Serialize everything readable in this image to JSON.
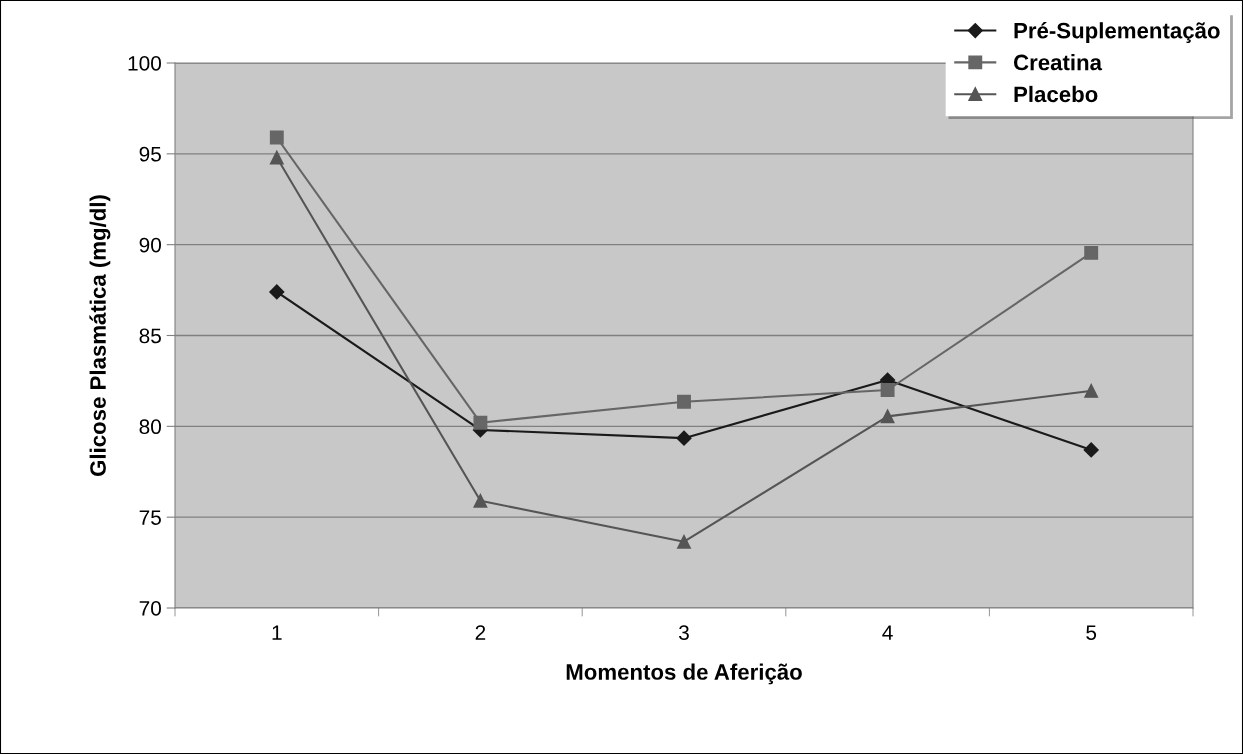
{
  "chart_data": {
    "type": "line",
    "xlabel": "Momentos de Aferição",
    "ylabel": "Glicose Plasmática (mg/dl)",
    "categories": [
      "1",
      "2",
      "3",
      "4",
      "5"
    ],
    "series": [
      {
        "name": "Pré-Suplementação",
        "color": "#1a1a1a",
        "marker": "diamond",
        "values": [
          87.4,
          79.8,
          79.35,
          82.55,
          78.7
        ]
      },
      {
        "name": "Creatina",
        "color": "#666666",
        "marker": "square",
        "values": [
          95.9,
          80.2,
          81.35,
          82.0,
          89.55
        ]
      },
      {
        "name": "Placebo",
        "color": "#555555",
        "marker": "triangle",
        "values": [
          94.8,
          75.9,
          73.65,
          80.55,
          81.95
        ]
      }
    ],
    "ylim": [
      70,
      100
    ],
    "yticks": [
      70,
      75,
      80,
      85,
      90,
      95,
      100
    ],
    "grid": "y",
    "legend": "top right",
    "line_style": "solid"
  }
}
